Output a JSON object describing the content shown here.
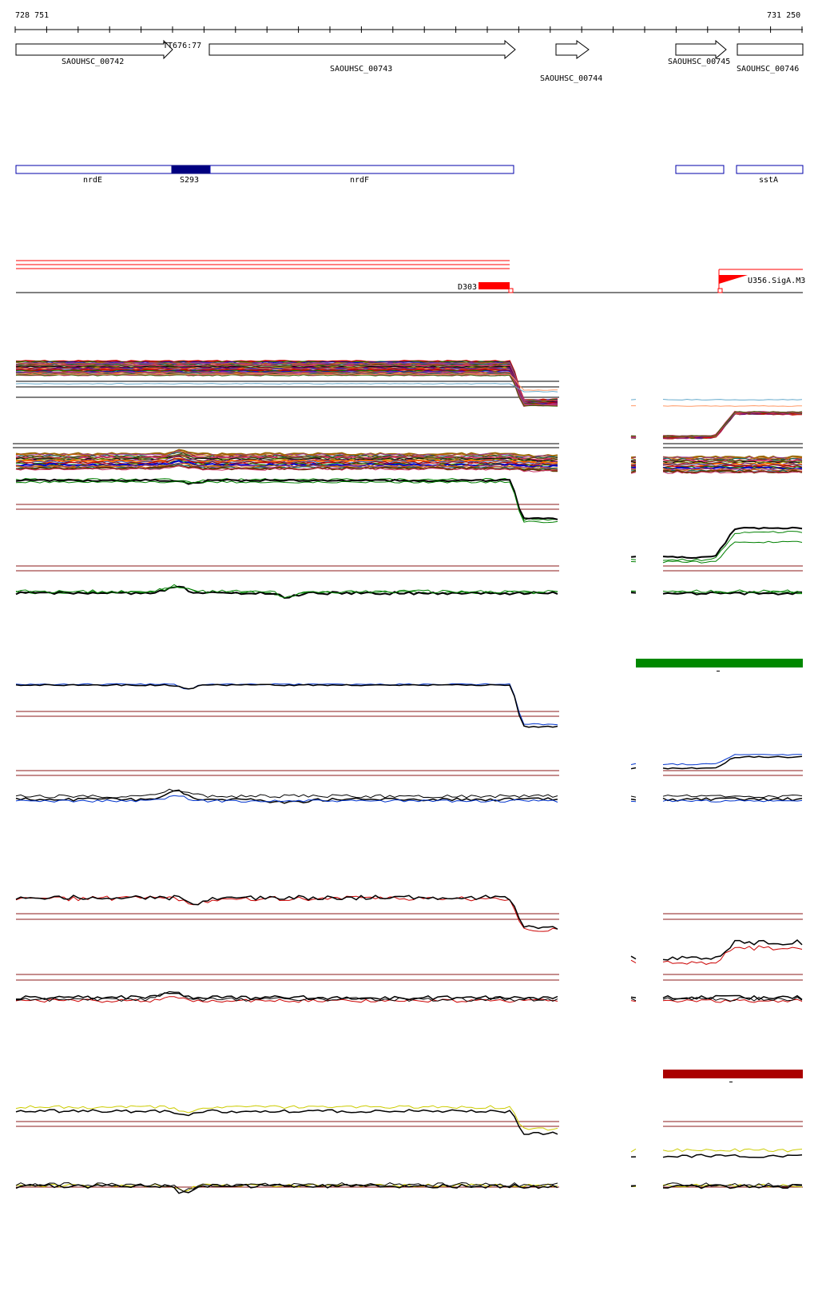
{
  "coords": {
    "start": "728 751",
    "end": "731 250"
  },
  "genes": [
    {
      "id": "SAOUHSC_00742"
    },
    {
      "id": "SAOUHSC_00743"
    },
    {
      "id": "SAOUHSC_00744"
    },
    {
      "id": "SAOUHSC_00745"
    },
    {
      "id": "SAOUHSC_00746"
    }
  ],
  "marker_label": "TT676:77",
  "annotations": [
    {
      "label": "nrdE"
    },
    {
      "label": "S293"
    },
    {
      "label": "nrdF"
    },
    {
      "label": "sstA"
    }
  ],
  "features": {
    "d_label": "D303",
    "u_label": "U356.SigA.M3"
  },
  "colors": {
    "gene_outline": "#000000",
    "annotation_blue": "#0000aa",
    "annotation_fill": "#000080",
    "red_feature": "#ff0000",
    "threshold_line": "#8b1a1a",
    "green_series": "#008000",
    "blue_series": "#0033cc",
    "red_series": "#cc0000",
    "yellow_series": "#cccc00",
    "black_series": "#000000",
    "green_bar": "#008800",
    "red_bar": "#aa0000"
  }
}
